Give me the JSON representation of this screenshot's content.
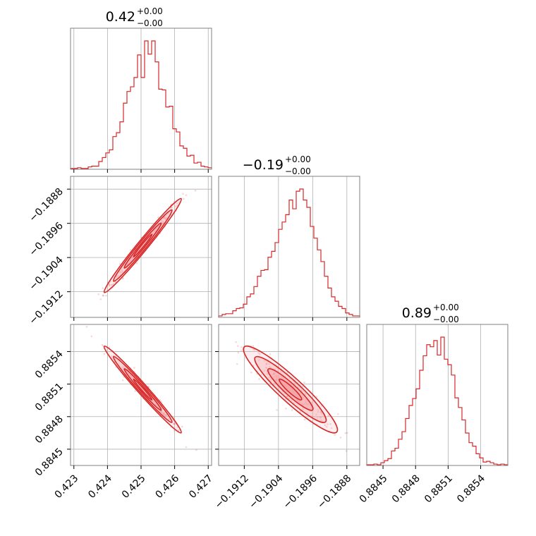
{
  "chart_data": {
    "type": "corner",
    "line_color": "#d62728",
    "fill_color": "#f4a3a5",
    "grid": true,
    "parameters": [
      {
        "title": {
          "value": "0.42",
          "plus": "+0.00",
          "minus": "−0.00"
        },
        "range": [
          0.4229,
          0.4271
        ],
        "ticks": [
          0.423,
          0.424,
          0.425,
          0.426,
          0.427
        ],
        "tick_labels": [
          "0.423",
          "0.424",
          "0.425",
          "0.426",
          "0.427"
        ],
        "mean": 0.42505,
        "sd": 0.00046
      },
      {
        "title": {
          "value": "−0.19",
          "plus": "+0.00",
          "minus": "−0.00"
        },
        "range": [
          -0.1918,
          -0.1885
        ],
        "ticks": [
          -0.1912,
          -0.1904,
          -0.1896,
          -0.1888
        ],
        "tick_labels": [
          "−0.1912",
          "−0.1904",
          "−0.1896",
          "−0.1888"
        ],
        "mean": -0.19012,
        "sd": 0.00044
      },
      {
        "title": {
          "value": "0.89",
          "plus": "+0.00",
          "minus": "−0.00"
        },
        "range": [
          0.88435,
          0.88565
        ],
        "ticks": [
          0.8845,
          0.8848,
          0.8851,
          0.8854
        ],
        "tick_labels": [
          "0.8845",
          "0.8848",
          "0.8851",
          "0.8854"
        ],
        "mean": 0.88505,
        "sd": 0.00016
      }
    ],
    "histograms": [
      {
        "param": 0,
        "bins": 40,
        "counts": [
          1,
          1,
          2,
          1,
          1,
          3,
          4,
          4,
          10,
          15,
          21,
          25,
          42,
          47,
          61,
          85,
          100,
          106,
          118,
          147,
          118,
          165,
          148,
          165,
          138,
          103,
          102,
          80,
          81,
          52,
          48,
          30,
          27,
          17,
          18,
          8,
          9,
          4,
          3,
          2
        ]
      },
      {
        "param": 1,
        "bins": 40,
        "counts": [
          2,
          4,
          5,
          5,
          9,
          12,
          13,
          18,
          28,
          32,
          42,
          56,
          64,
          65,
          82,
          90,
          102,
          120,
          130,
          140,
          160,
          148,
          172,
          175,
          160,
          150,
          124,
          108,
          92,
          76,
          56,
          40,
          28,
          22,
          15,
          12,
          6,
          4,
          2,
          2
        ]
      },
      {
        "param": 2,
        "bins": 40,
        "counts": [
          1,
          1,
          2,
          1,
          4,
          7,
          10,
          21,
          25,
          38,
          49,
          68,
          87,
          97,
          111,
          138,
          159,
          175,
          172,
          181,
          160,
          186,
          154,
          146,
          131,
          98,
          84,
          66,
          47,
          33,
          28,
          17,
          11,
          5,
          6,
          4,
          2,
          1,
          2,
          1
        ]
      }
    ],
    "correlations": {
      "0-1": 0.985,
      "0-2": -0.985,
      "1-2": -0.93
    }
  }
}
